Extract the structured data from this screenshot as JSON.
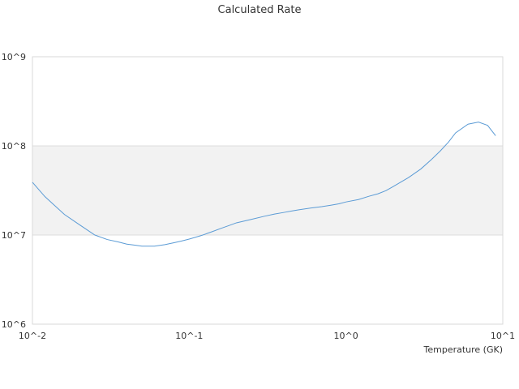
{
  "chart_data": {
    "type": "line",
    "title": "Calculated Rate",
    "xlabel": "Temperature (GK)",
    "ylabel": "",
    "x_scale": "log",
    "y_scale": "log",
    "xlim": [
      0.01,
      10
    ],
    "ylim": [
      1000000,
      1000000000
    ],
    "x_ticks": [
      0.01,
      0.1,
      1,
      10
    ],
    "x_tick_labels": [
      "10^-2",
      "10^-1",
      "10^0",
      "10^1"
    ],
    "y_ticks": [
      1000000,
      10000000,
      100000000,
      1000000000
    ],
    "y_tick_labels": [
      "10^6",
      "10^7",
      "10^8",
      "10^9"
    ],
    "alternate_bands": true,
    "line_color": "#5b9bd5",
    "band_color": "#f2f2f2",
    "series": [
      {
        "x": [
          0.01,
          0.012,
          0.016,
          0.02,
          0.025,
          0.03,
          0.035,
          0.04,
          0.045,
          0.05,
          0.055,
          0.06,
          0.07,
          0.08,
          0.09,
          0.1,
          0.12,
          0.14,
          0.16,
          0.18,
          0.2,
          0.25,
          0.3,
          0.35,
          0.4,
          0.45,
          0.5,
          0.6,
          0.7,
          0.8,
          0.9,
          1.0,
          1.2,
          1.4,
          1.6,
          1.8,
          2.0,
          2.5,
          3.0,
          3.5,
          4.0,
          4.5,
          5.0,
          6.0,
          7.0,
          8.0,
          9.0
        ],
        "y": [
          39000000,
          27000000,
          17000000,
          13000000,
          10000000,
          8900000,
          8400000,
          7900000,
          7700000,
          7500000,
          7500000,
          7500000,
          7800000,
          8200000,
          8600000,
          9000000,
          9900000,
          10900000,
          11900000,
          12800000,
          13700000,
          15000000,
          16200000,
          17200000,
          17900000,
          18600000,
          19200000,
          20100000,
          20800000,
          21600000,
          22400000,
          23500000,
          25000000,
          27200000,
          29000000,
          31500000,
          35000000,
          44000000,
          55000000,
          70000000,
          88000000,
          110000000,
          140000000,
          175000000,
          185000000,
          170000000,
          130000000
        ]
      }
    ]
  }
}
